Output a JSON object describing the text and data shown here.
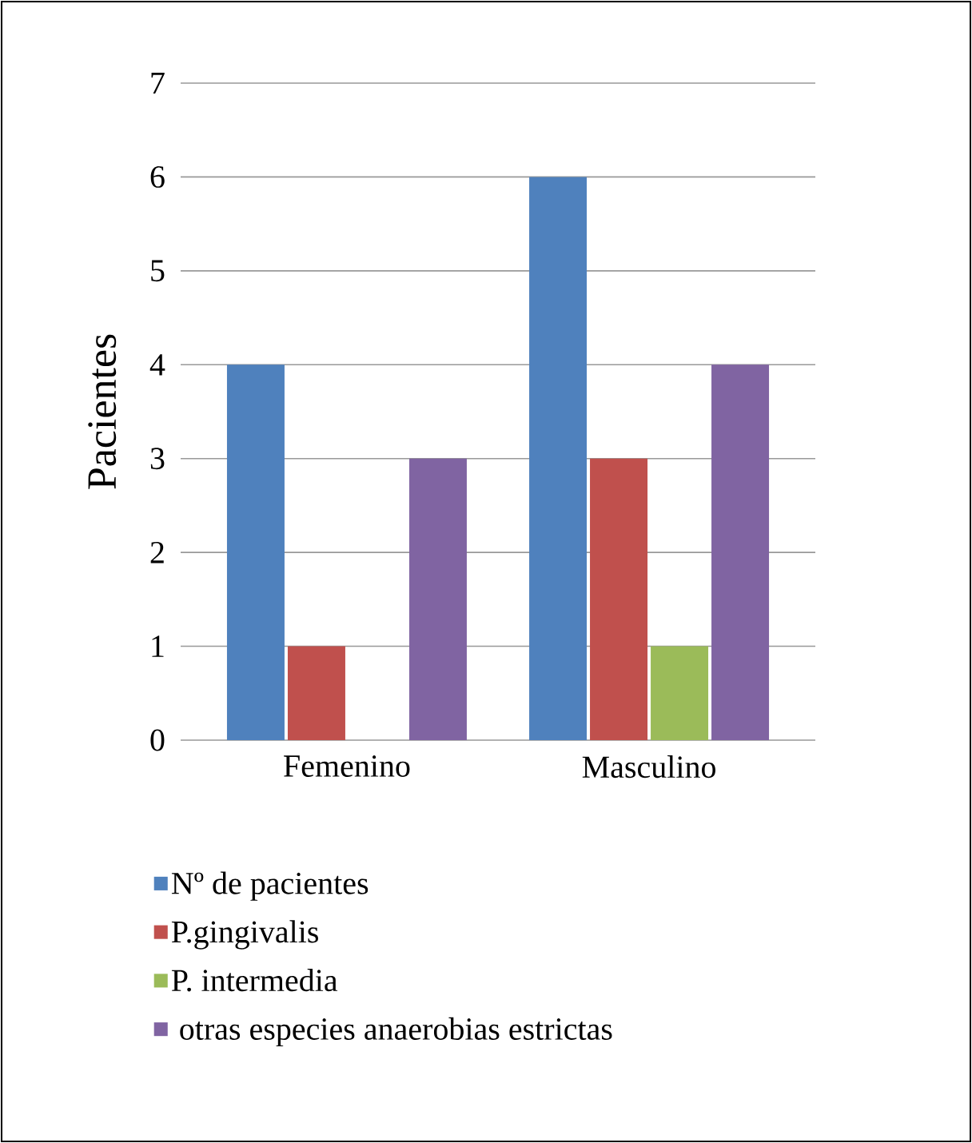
{
  "chart_data": {
    "type": "bar",
    "ylabel": "Pacientes",
    "categories": [
      "Femenino",
      "Masculino"
    ],
    "series": [
      {
        "name": "Nº de pacientes",
        "color": "#4f81bd",
        "values": [
          4,
          6
        ]
      },
      {
        "name": "P.gingivalis",
        "color": "#c0504d",
        "values": [
          1,
          3
        ]
      },
      {
        "name": "P. intermedia",
        "color": "#9bbb59",
        "values": [
          0,
          1
        ]
      },
      {
        "name": " otras especies anaerobias estrictas",
        "color": "#8064a2",
        "values": [
          3,
          4
        ]
      }
    ],
    "ylim": [
      0,
      7
    ],
    "yticks": [
      0,
      1,
      2,
      3,
      4,
      5,
      6,
      7
    ],
    "grid": "y",
    "legend": "bottom"
  }
}
